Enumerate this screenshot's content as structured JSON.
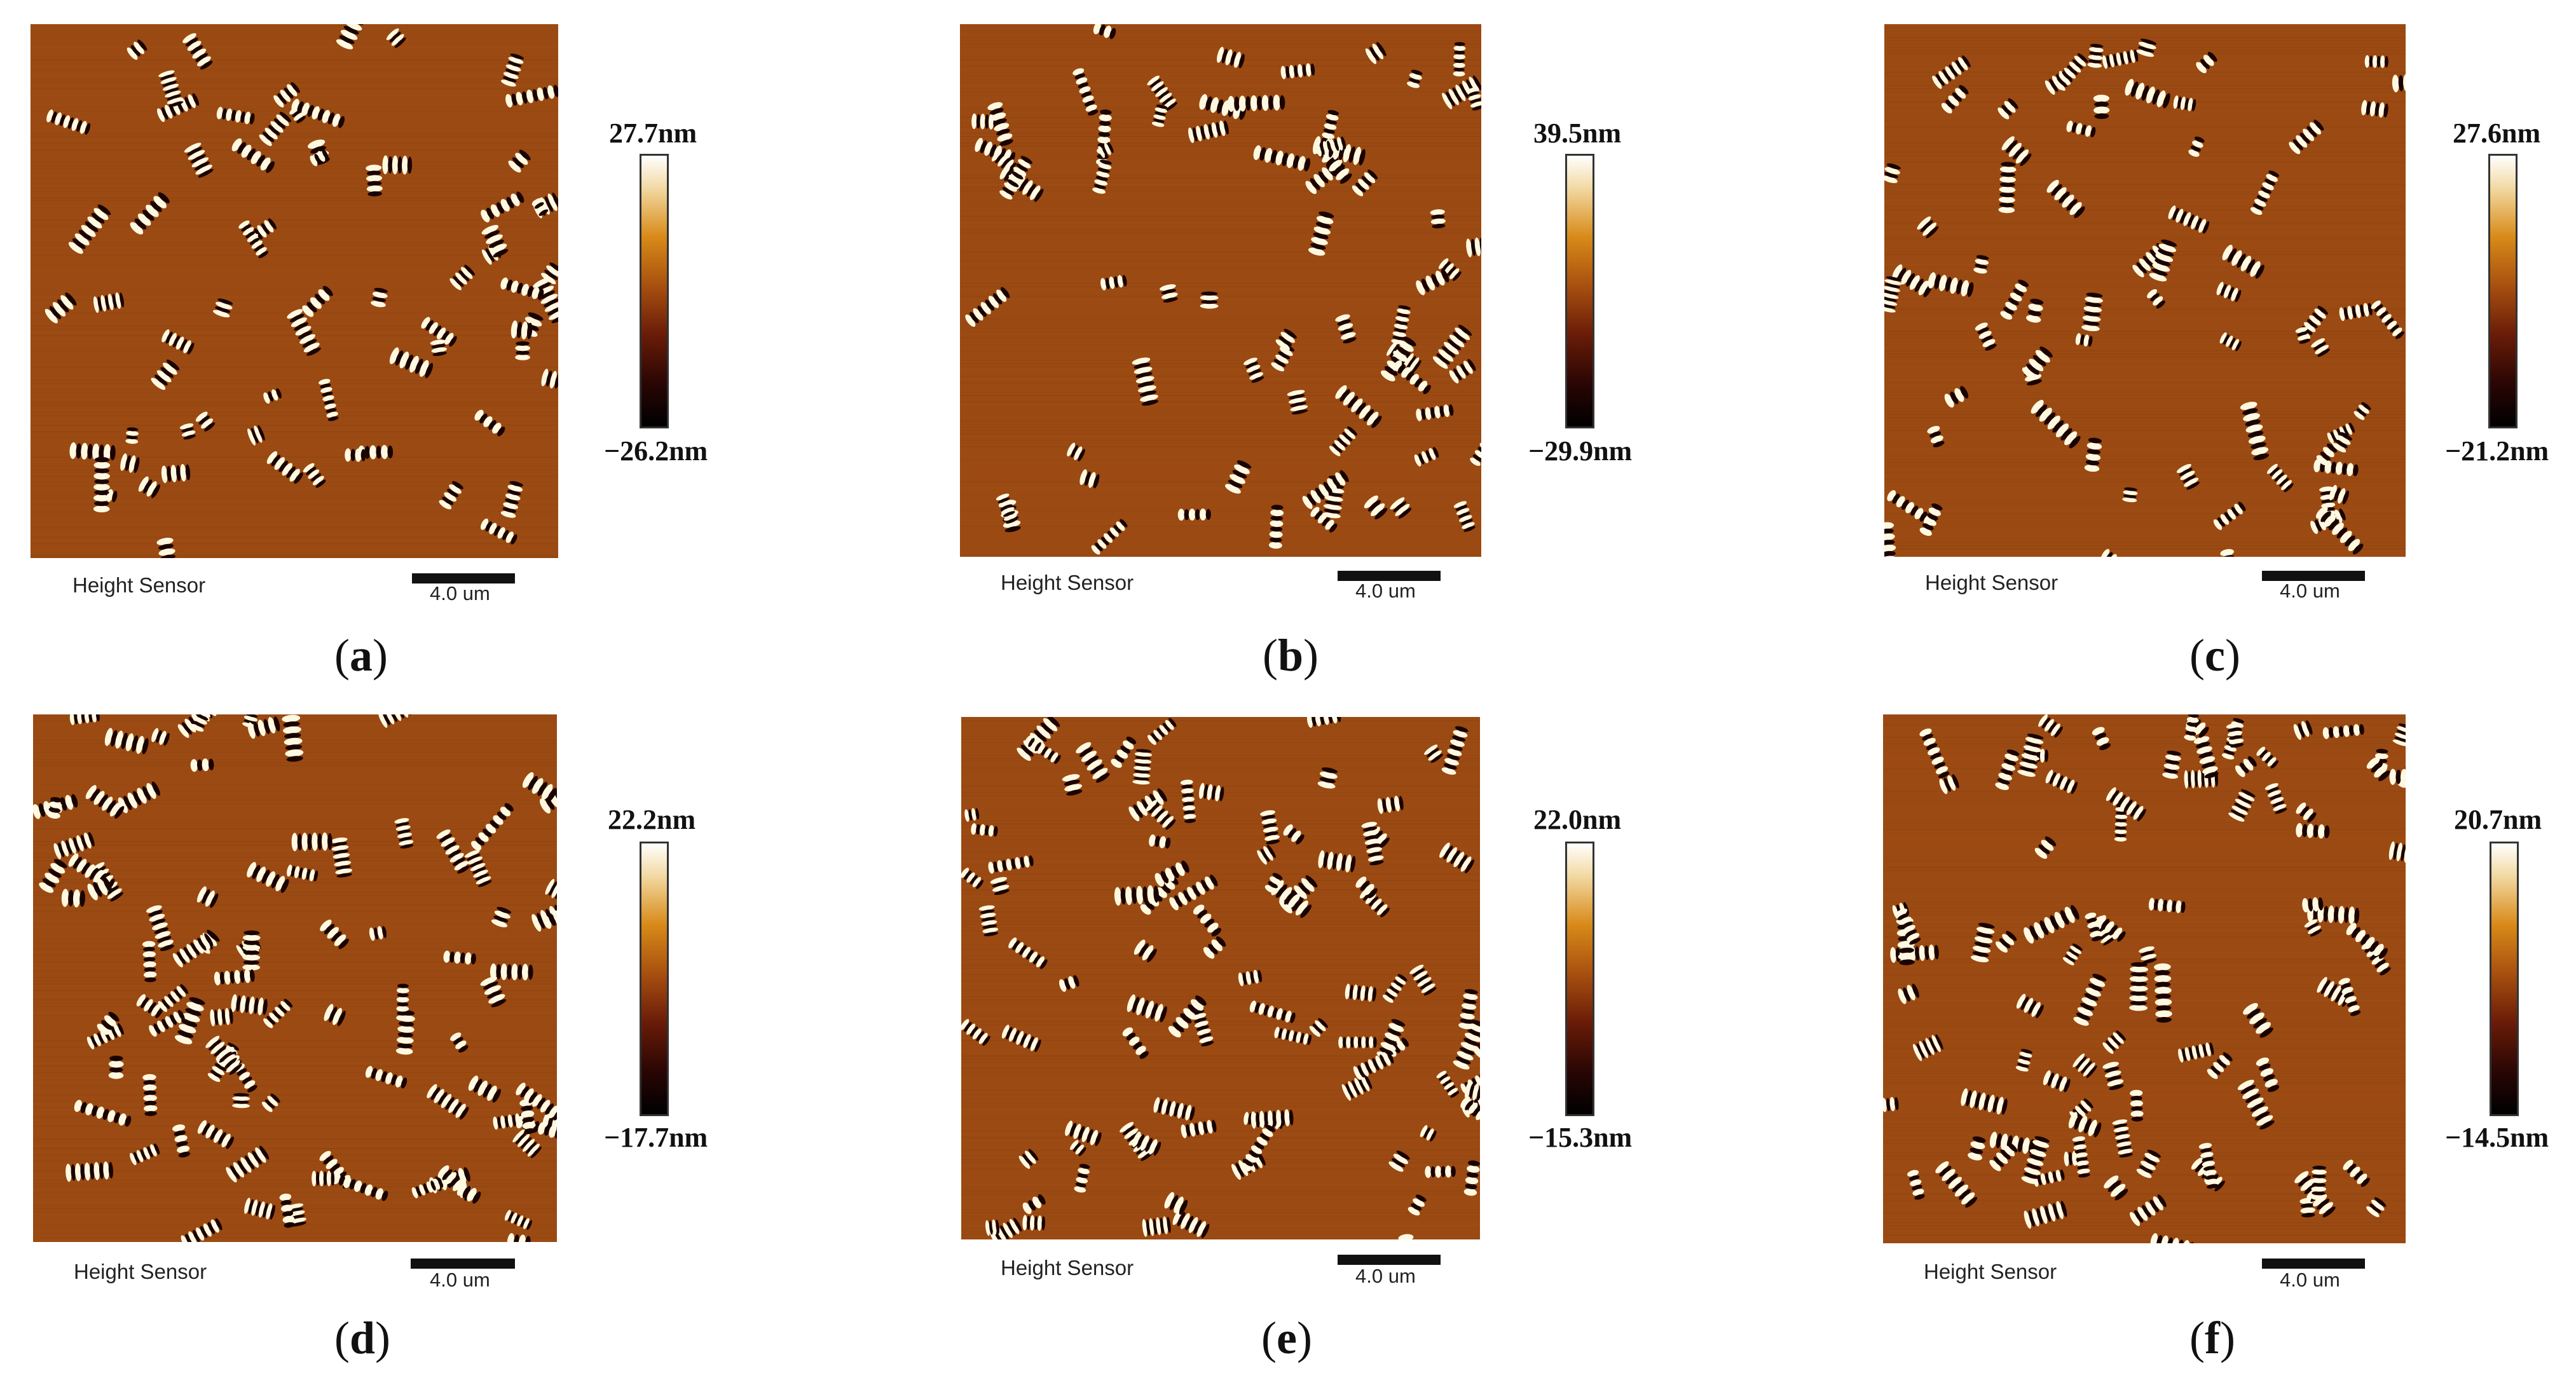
{
  "panels": [
    {
      "letter": "a",
      "channel": "Height Sensor",
      "scale_bar": "4.0 um",
      "max": "27.7nm",
      "min": "−26.2nm"
    },
    {
      "letter": "b",
      "channel": "Height Sensor",
      "scale_bar": "4.0 um",
      "max": "39.5nm",
      "min": "−29.9nm"
    },
    {
      "letter": "c",
      "channel": "Height Sensor",
      "scale_bar": "4.0 um",
      "max": "27.6nm",
      "min": "−21.2nm"
    },
    {
      "letter": "d",
      "channel": "Height Sensor",
      "scale_bar": "4.0 um",
      "max": "22.2nm",
      "min": "−17.7nm"
    },
    {
      "letter": "e",
      "channel": "Height Sensor",
      "scale_bar": "4.0 um",
      "max": "22.0nm",
      "min": "−15.3nm"
    },
    {
      "letter": "f",
      "channel": "Height Sensor",
      "scale_bar": "4.0 um",
      "max": "20.7nm",
      "min": "−14.5nm"
    }
  ],
  "colors": {
    "background_orange": "#9a4a12",
    "feature_light": "#fff8e0",
    "feature_dark": "#1a0402"
  }
}
